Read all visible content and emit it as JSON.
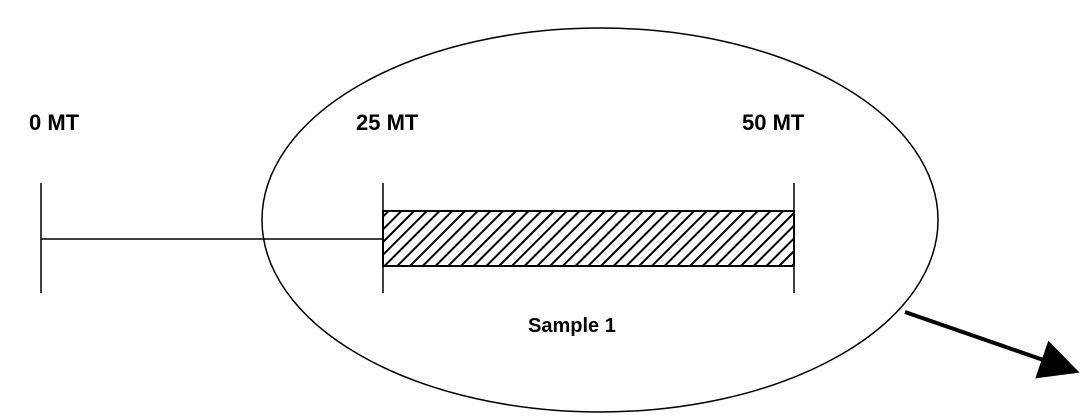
{
  "scale": {
    "unit": "MT",
    "ticks": [
      {
        "value": 0,
        "label": "0 MT"
      },
      {
        "value": 25,
        "label": "25 MT"
      },
      {
        "value": 50,
        "label": "50 MT"
      }
    ]
  },
  "sample": {
    "label": "Sample 1",
    "start": 25,
    "end": 50,
    "fill": "hatched"
  },
  "colors": {
    "stroke": "#000000",
    "background": "#ffffff"
  }
}
